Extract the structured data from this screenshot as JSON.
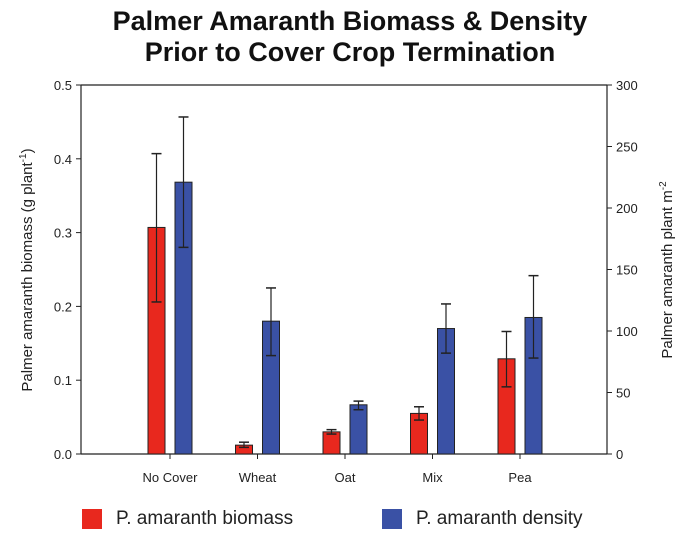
{
  "chart_data": {
    "type": "bar",
    "title_line1": "Palmer Amaranth Biomass & Density",
    "title_line2": "Prior to Cover Crop Termination",
    "categories": [
      "No Cover",
      "Wheat",
      "Oat",
      "Mix",
      "Pea"
    ],
    "ylabel": "Palmer amaranth biomass (g plant",
    "ylabel_sup": "-1",
    "ylabel_end": ")",
    "y2label": "Palmer amaranth plant m",
    "y2label_sup": "-2",
    "ylim": [
      0,
      0.5
    ],
    "y2lim": [
      0,
      300
    ],
    "yticks": [
      "0.0",
      "0.1",
      "0.2",
      "0.3",
      "0.4",
      "0.5"
    ],
    "y2ticks": [
      "0",
      "50",
      "100",
      "150",
      "200",
      "250",
      "300"
    ],
    "series": [
      {
        "name": "P. amaranth biomass",
        "axis": "left",
        "color": "#e8281e",
        "values": [
          0.307,
          0.012,
          0.03,
          0.055,
          0.129
        ],
        "err_low": [
          0.206,
          0.009,
          0.027,
          0.046,
          0.091
        ],
        "err_high": [
          0.407,
          0.016,
          0.033,
          0.064,
          0.166
        ]
      },
      {
        "name": "P. amaranth density",
        "axis": "right",
        "color": "#3a51a5",
        "values": [
          221,
          108,
          40,
          102,
          111
        ],
        "err_low": [
          168,
          80,
          36,
          82,
          78
        ],
        "err_high": [
          274,
          135,
          43,
          122,
          145
        ]
      }
    ],
    "legend_position": "bottom"
  }
}
